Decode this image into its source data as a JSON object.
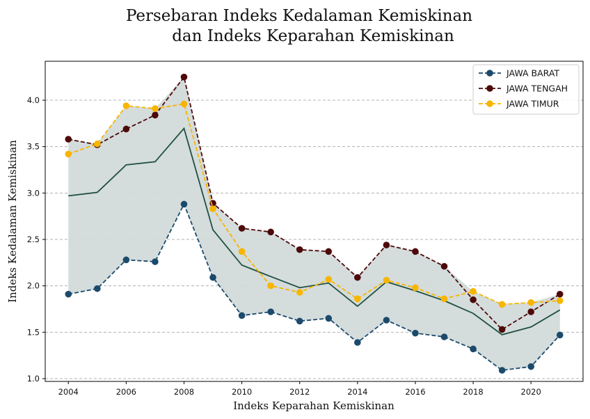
{
  "chart_data": {
    "type": "line",
    "title_lines": [
      "Persebaran Indeks Kedalaman Kemiskinan",
      "dan Indeks Keparahan Kemiskinan"
    ],
    "xlabel": "Indeks Keparahan Kemiskinan",
    "ylabel": "Indeks Kedalaman Kemiskinan",
    "x": [
      2004,
      2005,
      2006,
      2007,
      2008,
      2009,
      2010,
      2011,
      2012,
      2013,
      2014,
      2015,
      2016,
      2017,
      2018,
      2019,
      2020,
      2021
    ],
    "xlim": [
      2003.2,
      2021.8
    ],
    "ylim": [
      0.97,
      4.42
    ],
    "xticks": [
      2004,
      2006,
      2008,
      2010,
      2012,
      2014,
      2016,
      2018,
      2020
    ],
    "yticks": [
      1.0,
      1.5,
      2.0,
      2.5,
      3.0,
      3.5,
      4.0
    ],
    "grid": "horizontal",
    "legend_position": "top-right",
    "series": [
      {
        "name": "JAWA BARAT",
        "color": "#1b4a6b",
        "style": "dashed-marker",
        "values": [
          1.91,
          1.97,
          2.28,
          2.26,
          2.88,
          2.09,
          1.68,
          1.72,
          1.62,
          1.65,
          1.39,
          1.63,
          1.49,
          1.45,
          1.32,
          1.09,
          1.13,
          1.47
        ]
      },
      {
        "name": "JAWA TENGAH",
        "color": "#4d0a0a",
        "style": "dashed-marker",
        "values": [
          3.58,
          3.52,
          3.69,
          3.84,
          4.25,
          2.89,
          2.62,
          2.58,
          2.39,
          2.37,
          2.09,
          2.44,
          2.37,
          2.21,
          1.85,
          1.53,
          1.72,
          1.91
        ]
      },
      {
        "name": "JAWA TIMUR",
        "color": "#f7b500",
        "style": "dashed-marker",
        "values": [
          3.42,
          3.53,
          3.94,
          3.91,
          3.96,
          2.83,
          2.37,
          2.0,
          1.93,
          2.07,
          1.86,
          2.06,
          1.98,
          1.86,
          1.94,
          1.8,
          1.82,
          1.84
        ]
      }
    ],
    "mean_line_color": "#1f4f40",
    "band_color": "#d2dada"
  }
}
